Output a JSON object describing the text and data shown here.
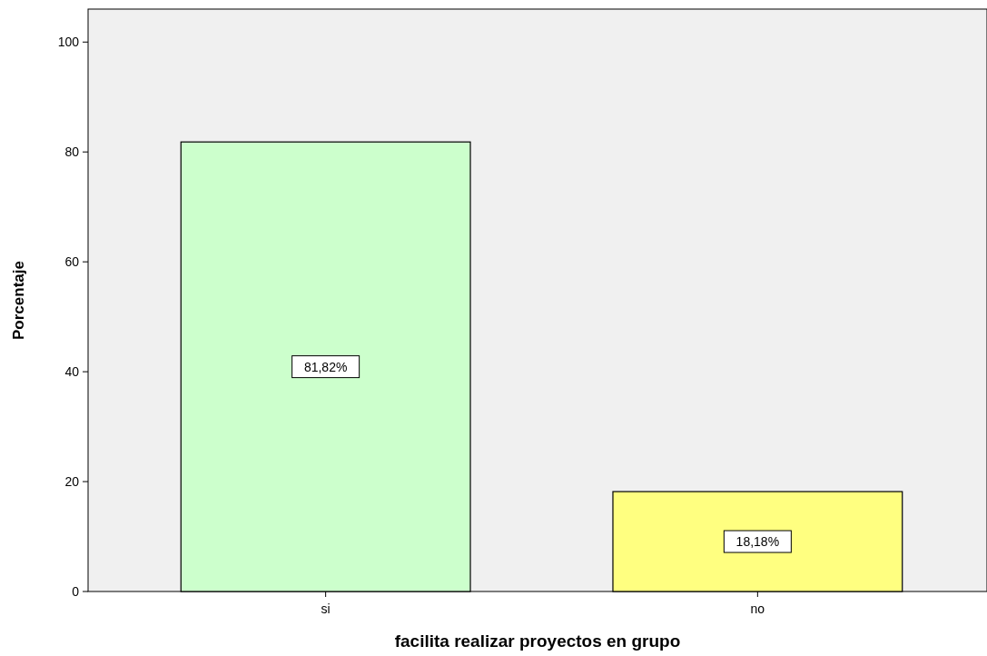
{
  "chart_data": {
    "type": "bar",
    "xlabel": "facilita realizar proyectos en grupo",
    "ylabel": "Porcentaje",
    "categories": [
      "si",
      "no"
    ],
    "values": [
      81.82,
      18.18
    ],
    "colors": [
      "#ccffcc",
      "#ffff80"
    ],
    "value_labels": [
      "81,82%",
      "18,18%"
    ],
    "ylim": [
      0,
      106
    ],
    "yticks": [
      0,
      20,
      40,
      60,
      80,
      100
    ],
    "grid": false
  }
}
